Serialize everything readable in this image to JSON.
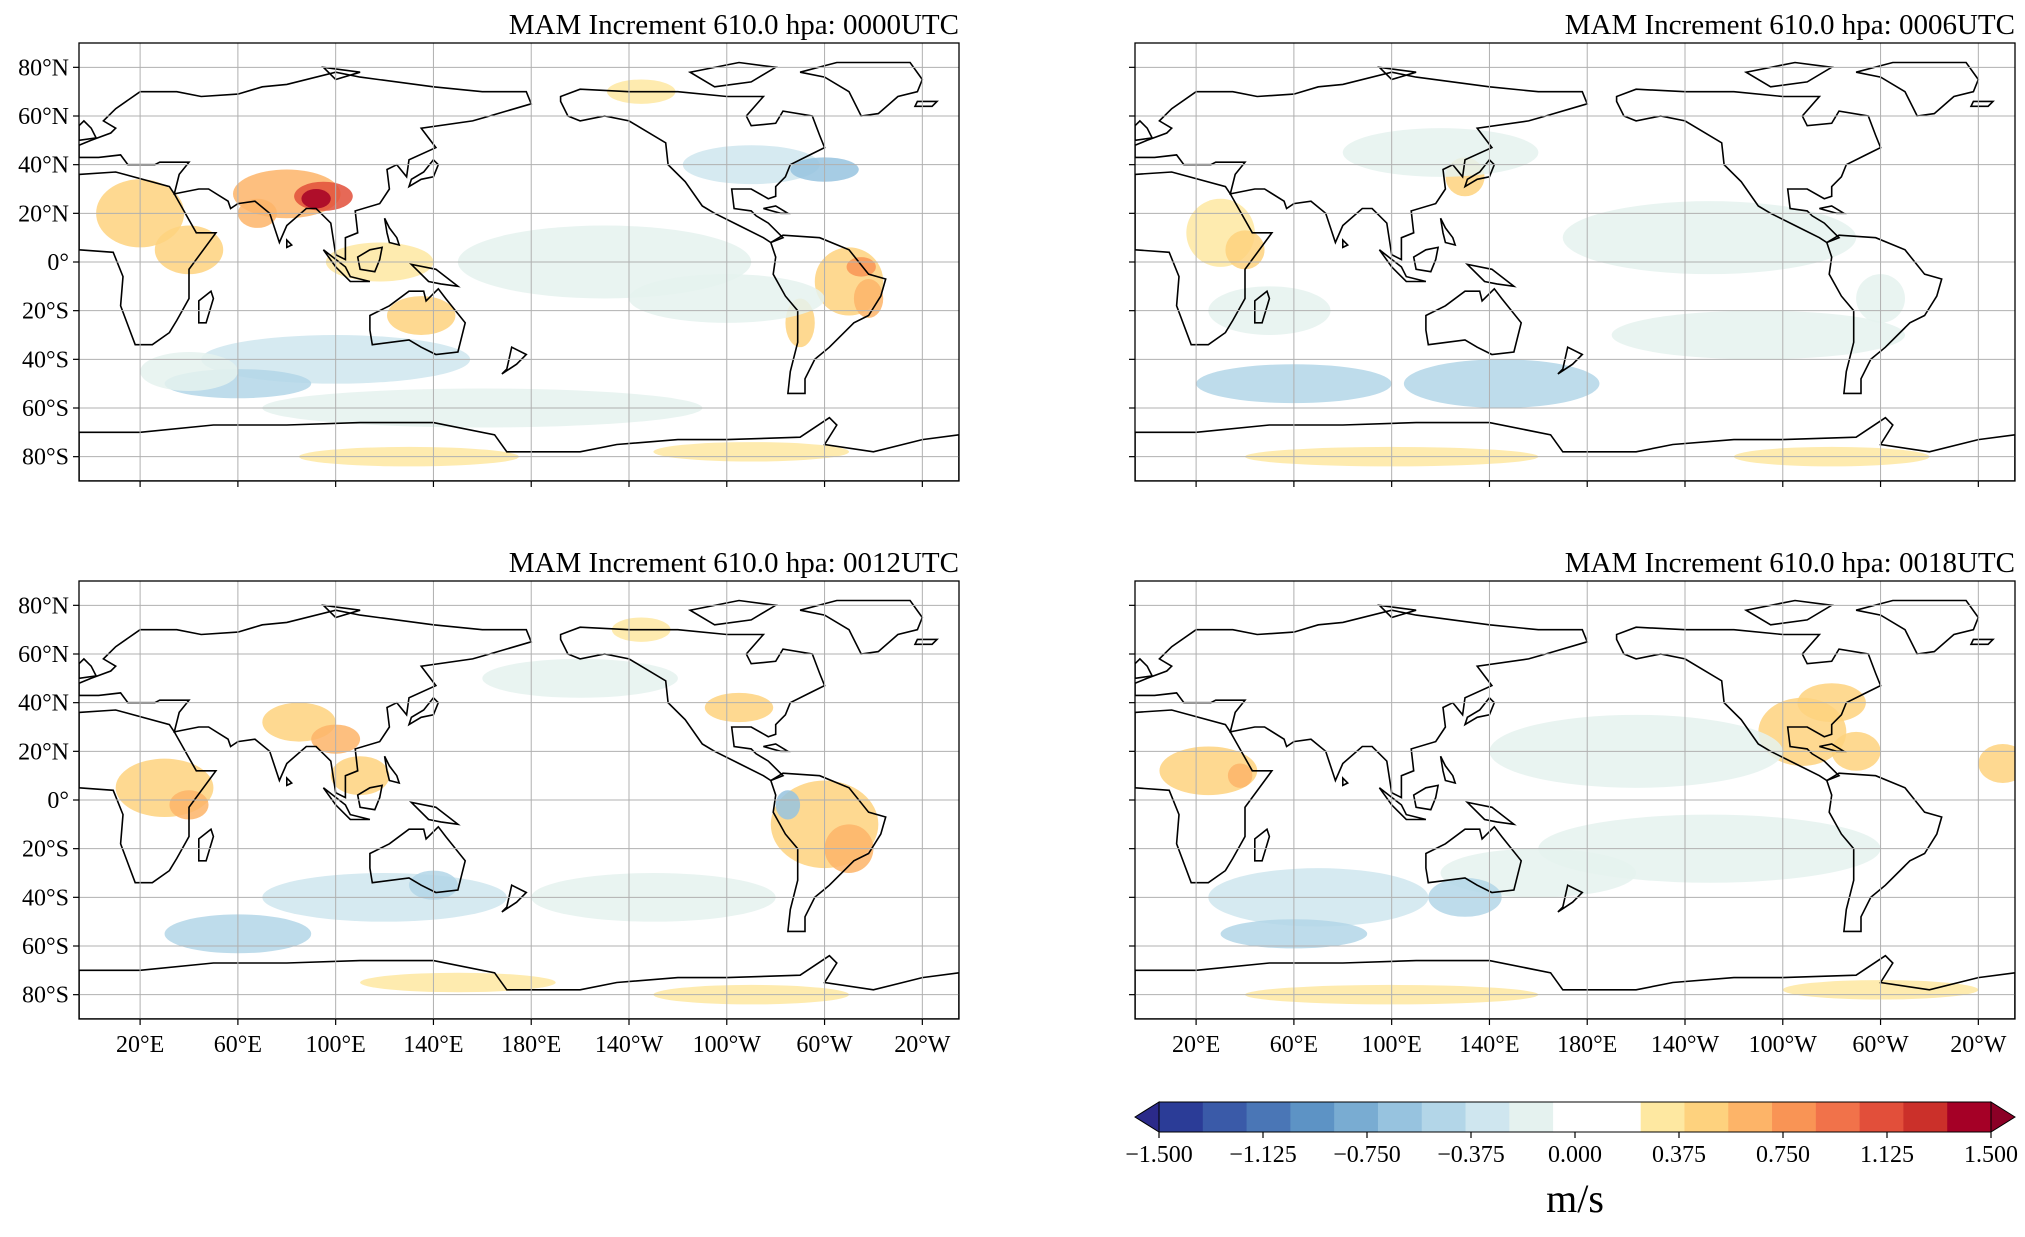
{
  "panels": [
    {
      "title": "MAM Increment 610.0 hpa:  0000UTC",
      "show_lat_labels": true,
      "show_lon_labels": false,
      "variant": 0
    },
    {
      "title": "MAM Increment 610.0 hpa:  0006UTC",
      "show_lat_labels": false,
      "show_lon_labels": false,
      "variant": 1
    },
    {
      "title": "MAM Increment 610.0 hpa:  0012UTC",
      "show_lat_labels": true,
      "show_lon_labels": true,
      "variant": 2
    },
    {
      "title": "MAM Increment 610.0 hpa:  0018UTC",
      "show_lat_labels": false,
      "show_lon_labels": true,
      "variant": 3
    }
  ],
  "lat_labels": [
    "80°N",
    "60°N",
    "40°N",
    "20°N",
    "0°",
    "20°S",
    "40°S",
    "60°S",
    "80°S"
  ],
  "lat_values": [
    80,
    60,
    40,
    20,
    0,
    -20,
    -40,
    -60,
    -80
  ],
  "lon_labels": [
    "20°E",
    "60°E",
    "100°E",
    "140°E",
    "180°E",
    "140°W",
    "100°W",
    "60°W",
    "20°W"
  ],
  "lon_values": [
    20,
    60,
    100,
    140,
    180,
    220,
    260,
    300,
    340
  ],
  "colorbar": {
    "ticks": [
      "−1.500",
      "−1.125",
      "−0.750",
      "−0.375",
      "0.000",
      "0.375",
      "0.750",
      "1.125",
      "1.500"
    ],
    "units": "m/s",
    "colors": [
      "#2b3c97",
      "#3a5aa8",
      "#4a76b6",
      "#5d93c5",
      "#79acd2",
      "#97c3df",
      "#b3d6e8",
      "#cfe6ef",
      "#e5f2ef",
      "#ffffff",
      "#ffffff",
      "#fee8a1",
      "#fed27e",
      "#fdb468",
      "#f99455",
      "#f1724a",
      "#e24f3a",
      "#cb302a",
      "#a50026"
    ]
  }
}
